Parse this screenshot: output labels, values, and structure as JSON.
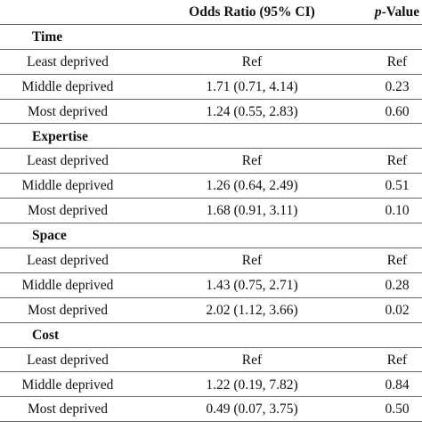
{
  "table": {
    "header": {
      "odds_ratio": "Odds Ratio (95% CI)",
      "p_value": {
        "italic": "p",
        "text": "-Value"
      }
    },
    "groups": [
      {
        "name": "Time",
        "rows": [
          [
            "Least deprived",
            "Ref",
            "Ref"
          ],
          [
            "Middle deprived",
            "1.71 (0.71, 4.14)",
            "0.23"
          ],
          [
            "Most deprived",
            "1.24 (0.55, 2.83)",
            "0.60"
          ]
        ]
      },
      {
        "name": "Expertise",
        "rows": [
          [
            "Least deprived",
            "Ref",
            "Ref"
          ],
          [
            "Middle deprived",
            "1.26 (0.64, 2.49)",
            "0.51"
          ],
          [
            "Most deprived",
            "1.68 (0.91, 3.11)",
            "0.10"
          ]
        ]
      },
      {
        "name": "Space",
        "rows": [
          [
            "Least deprived",
            "Ref",
            "Ref"
          ],
          [
            "Middle deprived",
            "1.43 (0.75, 2.71)",
            "0.28"
          ],
          [
            "Most deprived",
            "2.02 (1.12, 3.66)",
            "0.02"
          ]
        ]
      },
      {
        "name": "Cost",
        "rows": [
          [
            "Least deprived",
            "Ref",
            "Ref"
          ],
          [
            "Middle deprived",
            "1.22 (0.19, 7.82)",
            "0.84"
          ],
          [
            "Most deprived",
            "0.49 (0.07, 3.75)",
            "0.50"
          ]
        ]
      }
    ]
  }
}
